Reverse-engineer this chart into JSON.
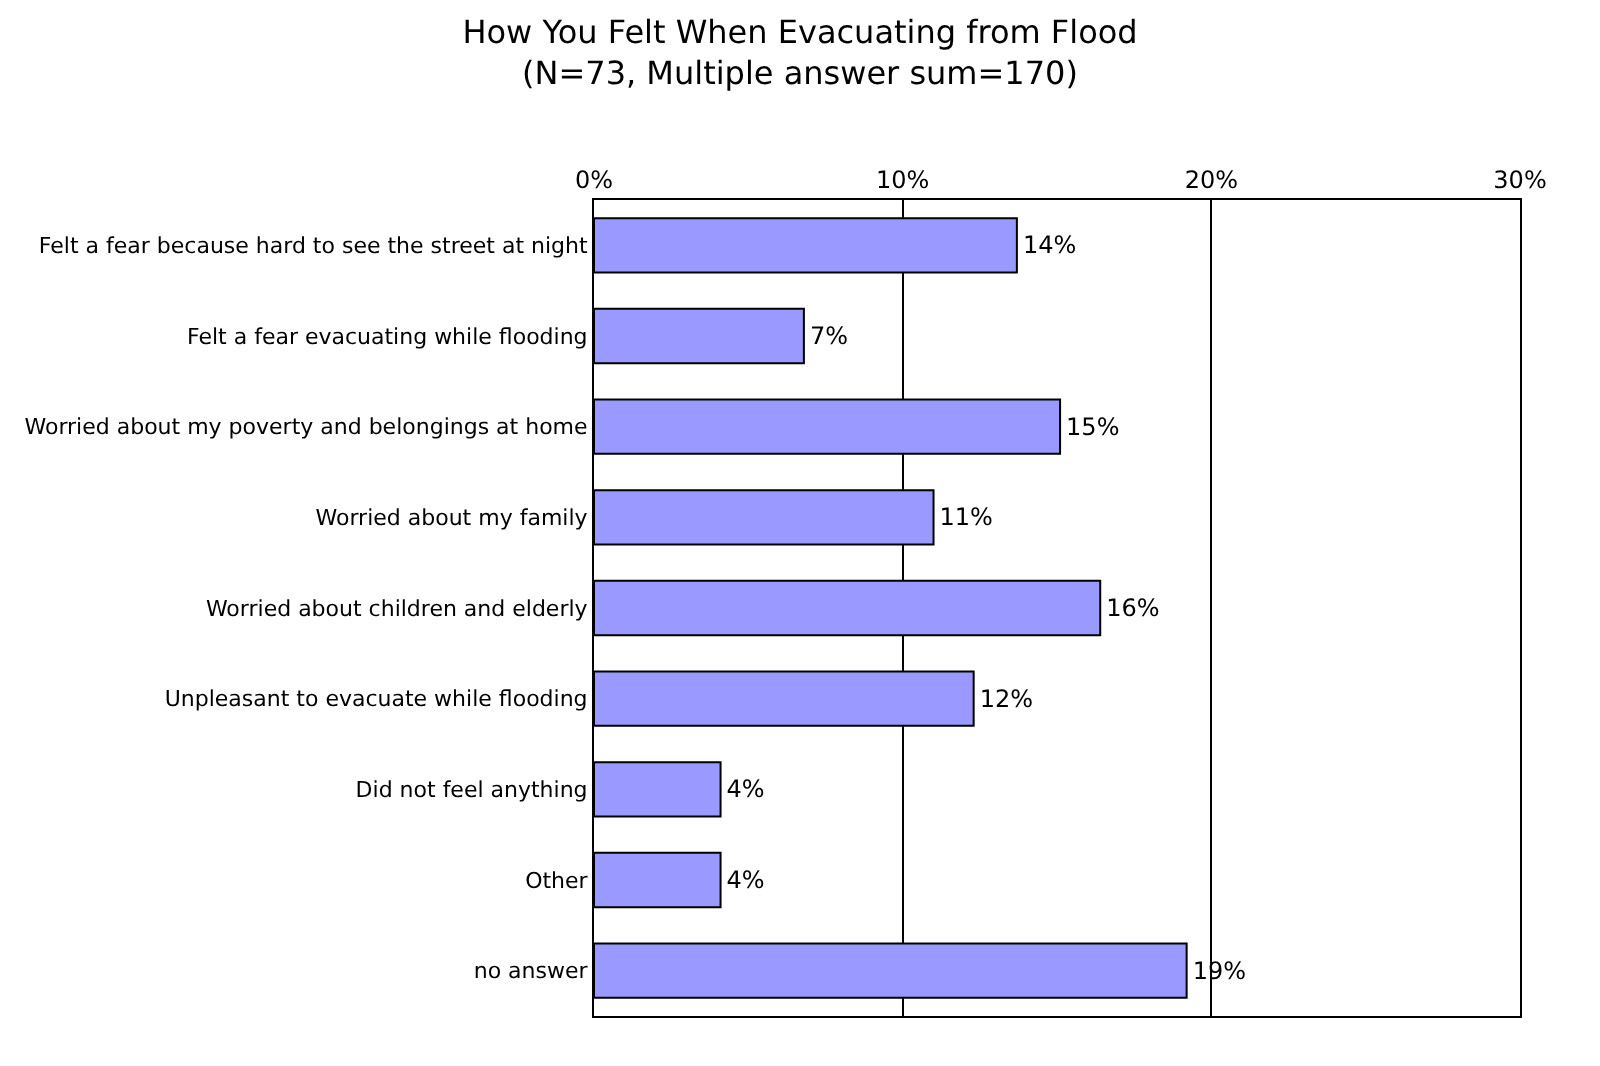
{
  "chart_data": {
    "type": "bar",
    "orientation": "horizontal",
    "title": "How You Felt When Evacuating from Flood",
    "subtitle": "(N=73, Multiple answer sum=170)",
    "categories": [
      "Felt a fear because hard to see the street at night",
      "Felt a fear evacuating while flooding",
      "Worried about my poverty and belongings at home",
      "Worried about my family",
      "Worried about children and elderly",
      "Unpleasant to evacuate while flooding",
      "Did not feel anything",
      "Other",
      "no answer"
    ],
    "values": [
      13.7,
      6.8,
      15.1,
      11.0,
      16.4,
      12.3,
      4.1,
      4.1,
      19.2
    ],
    "value_labels": [
      "14%",
      "7%",
      "15%",
      "11%",
      "16%",
      "12%",
      "4%",
      "4%",
      "19%"
    ],
    "color": "#9999ff",
    "xlim": [
      0,
      30
    ],
    "xticks": [
      {
        "value": 0,
        "label": "0%"
      },
      {
        "value": 10,
        "label": "10%"
      },
      {
        "value": 20,
        "label": "20%"
      },
      {
        "value": 30,
        "label": "30%"
      }
    ],
    "grid": "x",
    "legend": false
  }
}
